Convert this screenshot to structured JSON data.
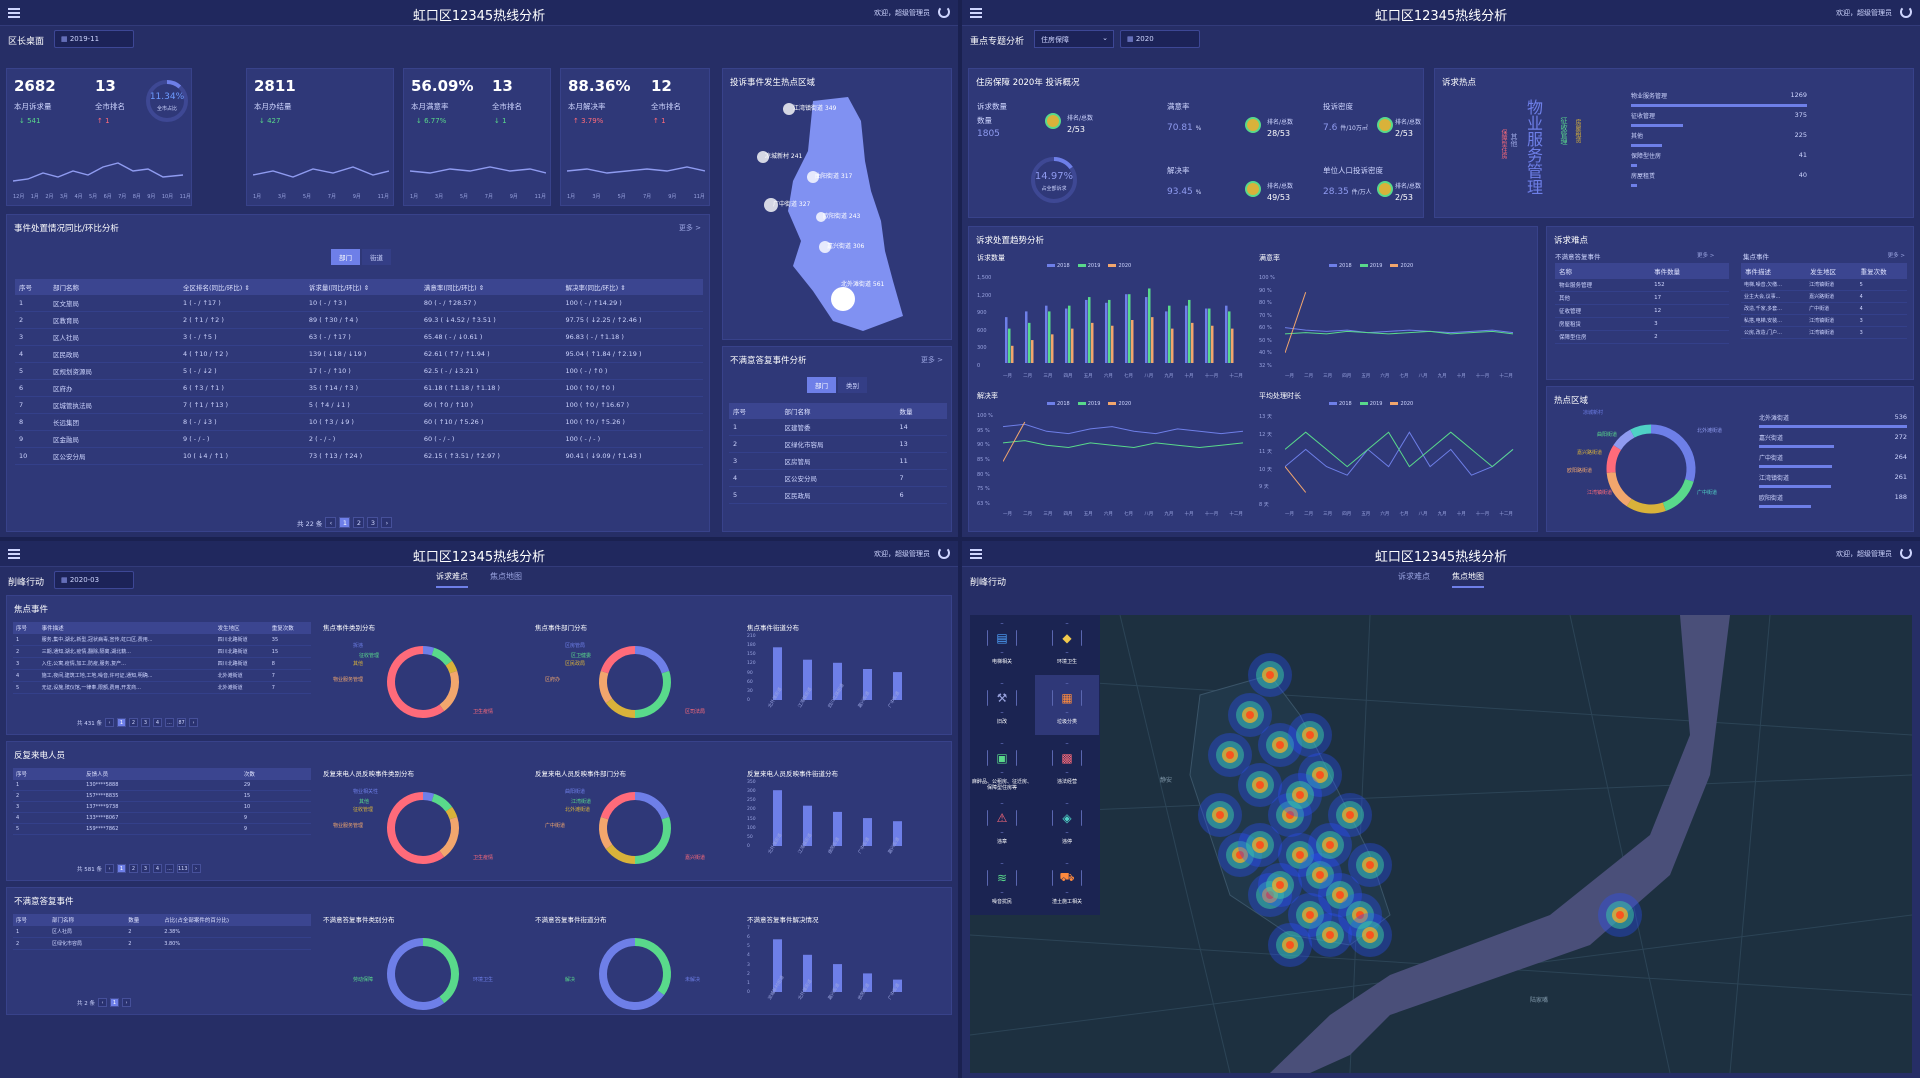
{
  "header": {
    "title": "虹口区12345热线分析",
    "user": "欢迎，超级管理员"
  },
  "q1": {
    "section": "区长桌面",
    "date": "2019-11",
    "kpis": [
      {
        "v1": "2682",
        "v2": "13",
        "l1": "本月诉求量",
        "l2": "全市排名",
        "d1": "↓ 541",
        "d2": "↑ 1",
        "ring": "11.34%",
        "ring_lbl": "全市占比",
        "ticks": [
          "12月",
          "1月",
          "2月",
          "3月",
          "4月",
          "5月",
          "6月",
          "7月",
          "8月",
          "9月",
          "10月",
          "11月"
        ]
      },
      {
        "v1": "2811",
        "v2": "",
        "l1": "本月办结量",
        "l2": "",
        "d1": "↓ 427",
        "d2": "",
        "ticks": [
          "1月",
          "3月",
          "5月",
          "7月",
          "9月",
          "11月"
        ]
      },
      {
        "v1": "56.09%",
        "v2": "13",
        "l1": "本月满意率",
        "l2": "全市排名",
        "d1": "↓ 6.77%",
        "d2": "↓ 1",
        "ticks": [
          "1月",
          "3月",
          "5月",
          "7月",
          "9月",
          "11月"
        ]
      },
      {
        "v1": "88.36%",
        "v2": "12",
        "l1": "本月解决率",
        "l2": "全市排名",
        "d1": "↑ 3.79%",
        "d2": "↑ 1",
        "ticks": [
          "1月",
          "3月",
          "5月",
          "7月",
          "9月",
          "11月"
        ]
      }
    ],
    "map_title": "投诉事件发生热点区域",
    "map_labels": [
      "江湾镇街道 349",
      "凉城新村 241",
      "曲阳街道 317",
      "广中街道 327",
      "欧阳街道 243",
      "嘉兴街道 306",
      "北外滩街道 561"
    ],
    "table_title": "事件处置情况同比/环比分析",
    "more": "更多 >",
    "tabs": [
      "部门",
      "街道"
    ],
    "cols": [
      "序号",
      "部门名称",
      "全区排名(同比/环比) ⇕",
      "诉求量(同比/环比) ⇕",
      "满意率(同比/环比) ⇕",
      "解决率(同比/环比) ⇕"
    ],
    "rows": [
      [
        "1",
        "区文旅局",
        "1 ( - / ↑17 )",
        "10 ( - / ↑3 )",
        "80 ( - / ↑28.57 )",
        "100 ( - / ↑14.29 )"
      ],
      [
        "2",
        "区教育局",
        "2 ( ↑1 / ↑2 )",
        "89 ( ↑30 / ↑4 )",
        "69.3 ( ↓4.52 / ↑3.51 )",
        "97.75 ( ↓2.25 / ↑2.46 )"
      ],
      [
        "3",
        "区人社局",
        "3 ( - / ↑5 )",
        "63 ( - / ↑17 )",
        "65.48 ( - / ↓0.61 )",
        "96.83 ( - / ↑1.18 )"
      ],
      [
        "4",
        "区民政局",
        "4 ( ↑10 / ↑2 )",
        "139 ( ↓18 / ↓19 )",
        "62.61 ( ↑7 / ↑1.94 )",
        "95.04 ( ↑1.84 / ↑2.19 )"
      ],
      [
        "5",
        "区规划资源局",
        "5 ( - / ↓2 )",
        "17 ( - / ↑10 )",
        "62.5 ( - / ↓3.21 )",
        "100 ( - / ↑0 )"
      ],
      [
        "6",
        "区府办",
        "6 ( ↑3 / ↑1 )",
        "35 ( ↑14 / ↑3 )",
        "61.18 ( ↑1.18 / ↑1.18 )",
        "100 ( ↑0 / ↑0 )"
      ],
      [
        "7",
        "区城管执法局",
        "7 ( ↑1 / ↑13 )",
        "5 ( ↑4 / ↓1 )",
        "60 ( ↑0 / ↑10 )",
        "100 ( ↑0 / ↑16.67 )"
      ],
      [
        "8",
        "长远集团",
        "8 ( - / ↓3 )",
        "10 ( ↑3 / ↓9 )",
        "60 ( ↑10 / ↑5.26 )",
        "100 ( ↑0 / ↑5.26 )"
      ],
      [
        "9",
        "区金融局",
        "9 ( - / - )",
        "2 ( - / - )",
        "60 ( - / - )",
        "100 ( - / - )"
      ],
      [
        "10",
        "区公安分局",
        "10 ( ↓4 / ↑1 )",
        "73 ( ↑13 / ↑24 )",
        "62.15 ( ↑3.51 / ↑2.97 )",
        "90.41 ( ↓9.09 / ↑1.43 )"
      ]
    ],
    "pager": [
      "共 22 条",
      "‹",
      "1",
      "2",
      "3",
      "›"
    ],
    "dis_title": "不满意答复事件分析",
    "dis_more": "更多 >",
    "dis_tabs": [
      "部门",
      "类别"
    ],
    "dis_cols": [
      "序号",
      "部门名称",
      "数量"
    ],
    "dis_rows": [
      [
        "1",
        "区建管委",
        "14"
      ],
      [
        "2",
        "区绿化市容局",
        "13"
      ],
      [
        "3",
        "区房管局",
        "11"
      ],
      [
        "4",
        "区公安分局",
        "7"
      ],
      [
        "5",
        "区民政局",
        "6"
      ]
    ]
  },
  "q2": {
    "section": "重点专题分析",
    "select": "住房保障",
    "date": "2020",
    "ov_title": "住房保障 2020年 投诉概况",
    "ov": {
      "c_lbl": "诉求数量",
      "c_sub": "数量",
      "c_val": "1805",
      "c_rank_lbl": "排名/总数",
      "c_rank": "2/53",
      "ring": "14.97%",
      "ring_lbl": "占全部诉求",
      "s_lbl": "满意率",
      "s_val": "70.81",
      "s_unit": "%",
      "s_rank": "28/53",
      "r_lbl": "解决率",
      "r_val": "93.45",
      "r_unit": "%",
      "r_rank": "49/53",
      "d_lbl": "投诉密度",
      "d_val": "7.6",
      "d_unit": "件/10万㎡",
      "d_rank": "2/53",
      "p_lbl": "单位人口投诉密度",
      "p_val": "28.35",
      "p_unit": "件/万人",
      "p_rank": "2/53",
      "rank_lbl": "排名/总数"
    },
    "hot_title": "诉求热点",
    "cloud": [
      "物业服务管理",
      "征收管理",
      "其他",
      "保障型住房",
      "房屋租赁"
    ],
    "hot_rows": [
      [
        "物业服务管理",
        "1269"
      ],
      [
        "征收管理",
        "375"
      ],
      [
        "其他",
        "225"
      ],
      [
        "保障型住房",
        "41"
      ],
      [
        "房屋租赁",
        "40"
      ]
    ],
    "trend_title": "诉求处置趋势分析",
    "months": [
      "一月",
      "二月",
      "三月",
      "四月",
      "五月",
      "六月",
      "七月",
      "八月",
      "九月",
      "十月",
      "十一月",
      "十二月"
    ],
    "legend": [
      "2018",
      "2019",
      "2020"
    ],
    "c1": {
      "title": "诉求数量",
      "yt": [
        "1,500",
        "1,200",
        "900",
        "600",
        "300",
        "0"
      ]
    },
    "c2": {
      "title": "满意率",
      "yt": [
        "100 %",
        "90 %",
        "80 %",
        "70 %",
        "60 %",
        "50 %",
        "40 %",
        "32 %"
      ]
    },
    "c3": {
      "title": "解决率",
      "yt": [
        "100 %",
        "95 %",
        "90 %",
        "85 %",
        "80 %",
        "75 %",
        "63 %"
      ]
    },
    "c4": {
      "title": "平均处理时长",
      "yt": [
        "13 天",
        "12 天",
        "11 天",
        "10 天",
        "9 天",
        "8 天"
      ]
    },
    "diff_title": "诉求难点",
    "d1_title": "不满意答复事件",
    "d1_cols": [
      "名称",
      "事件数量"
    ],
    "d1_rows": [
      [
        "物业服务管理",
        "152"
      ],
      [
        "其他",
        "17"
      ],
      [
        "征收管理",
        "12"
      ],
      [
        "房屋租赁",
        "3"
      ],
      [
        "保障型住房",
        "2"
      ]
    ],
    "d2_title": "集点事件",
    "d2_cols": [
      "事件描述",
      "发生地区",
      "重复次数"
    ],
    "d2_rows": [
      [
        "电梯,噪音,欠缴...",
        "江湾镇街道",
        "5"
      ],
      [
        "业主大会,议事...",
        "嘉兴路街道",
        "4"
      ],
      [
        "改造,千家,多套...",
        "广中街道",
        "4"
      ],
      [
        "私搭,电梯,安装...",
        "江湾镇街道",
        "3"
      ],
      [
        "公房,改造,门户...",
        "江湾镇街道",
        "3"
      ]
    ],
    "more": "更多 >",
    "zone_title": "热点区域",
    "zone_labels": [
      "凉城新村",
      "曲阳街道",
      "嘉兴路街道",
      "欧阳路街道",
      "江湾镇街道",
      "北外滩街道",
      "广中街道"
    ],
    "zone_rows": [
      [
        "北外滩街道",
        "536"
      ],
      [
        "嘉兴街道",
        "272"
      ],
      [
        "广中街道",
        "264"
      ],
      [
        "江湾镇街道",
        "261"
      ],
      [
        "欧阳街道",
        "188"
      ]
    ]
  },
  "q3": {
    "section": "削峰行动",
    "date": "2020-03",
    "tabs": [
      "诉求难点",
      "焦点地图"
    ],
    "s1": {
      "title": "焦点事件",
      "cols": [
        "序号",
        "事件描述",
        "发生地区",
        "重复次数"
      ],
      "rows": [
        [
          "1",
          "服务,集中,湖北,新型,冠状病毒,宣传,虹口区,费用...",
          "四川北路街道",
          "35"
        ],
        [
          "2",
          "三期,通知,湖北,疫情,翻除,隔离,湖北籍...",
          "四川北路街道",
          "15"
        ],
        [
          "3",
          "入住,公寓,疫情,加工,防疫,服务,复产...",
          "四川北路街道",
          "8"
        ],
        [
          "4",
          "施工,夜间,建筑工地,工地,噪音,许可证,通知,明确...",
          "北外滩街道",
          "7"
        ],
        [
          "5",
          "无证,设施,殡仪馆,一律奉,限额,费用,开发商...",
          "北外滩街道",
          "7"
        ]
      ],
      "pager": [
        "共 431 条",
        "‹",
        "1",
        "2",
        "3",
        "4",
        "...",
        "87",
        "›"
      ],
      "ch": [
        "焦点事件类别分布",
        "焦点事件部门分布",
        "焦点事件街道分布"
      ],
      "pie1": [
        "拆违",
        "征收管理",
        "其他",
        "物业服务管理",
        "卫生疫情"
      ],
      "pie2": [
        "区房管局",
        "区卫健委",
        "区民政局",
        "区府办",
        "区司法局"
      ],
      "bars": [
        "北外滩街道",
        "江湾镇街道",
        "四川北路街道",
        "嘉兴街道",
        "广中街道"
      ],
      "yt": [
        "210",
        "180",
        "150",
        "120",
        "90",
        "60",
        "30",
        "0"
      ]
    },
    "s2": {
      "title": "反复来电人员",
      "cols": [
        "序号",
        "反馈人员",
        "次数"
      ],
      "rows": [
        [
          "1",
          "130****5888",
          "29"
        ],
        [
          "2",
          "157****8835",
          "15"
        ],
        [
          "3",
          "137****9738",
          "10"
        ],
        [
          "4",
          "133****8067",
          "9"
        ],
        [
          "5",
          "159****7862",
          "9"
        ]
      ],
      "pager": [
        "共 581 条",
        "‹",
        "1",
        "2",
        "3",
        "4",
        "...",
        "113",
        "›"
      ],
      "ch": [
        "反复来电人员反映事件类别分布",
        "反复来电人员反映事件部门分布",
        "反复来电人员反映事件街道分布"
      ],
      "pie1": [
        "物业相关性",
        "其他",
        "征收管理",
        "物业服务管理",
        "卫生疫情"
      ],
      "pie2": [
        "曲阳街道",
        "江湾街道",
        "北外滩街道",
        "广中街道",
        "嘉兴街道"
      ],
      "bars": [
        "北外滩街道",
        "江湾镇街道",
        "曲阳街道",
        "广中街道",
        "嘉兴街道"
      ],
      "yt": [
        "350",
        "300",
        "250",
        "200",
        "150",
        "100",
        "50",
        "0"
      ]
    },
    "s3": {
      "title": "不满意答复事件",
      "cols": [
        "序号",
        "部门名称",
        "数量",
        "占比(占全部案件的百分比)"
      ],
      "rows": [
        [
          "1",
          "区人社局",
          "2",
          "2.38%"
        ],
        [
          "2",
          "区绿化市容局",
          "2",
          "3.80%"
        ]
      ],
      "pager": [
        "共 2 条",
        "‹",
        "1",
        "›"
      ],
      "ch": [
        "不满意答复事件类别分布",
        "不满意答复事件街道分布",
        "不满意答复事件解决情况"
      ],
      "pie1": [
        "劳动保障",
        "环境卫生"
      ],
      "pie2": [
        "解决",
        "未解决"
      ],
      "bars": [
        "凉城新村街道",
        "北外滩街道",
        "嘉兴街道",
        "欧阳街道",
        "广中街道"
      ],
      "yt": [
        "7",
        "6",
        "5",
        "4",
        "3",
        "2",
        "1",
        "0"
      ]
    }
  },
  "q4": {
    "section": "削峰行动",
    "tabs": [
      "诉求难点",
      "焦点地图"
    ],
    "menu": [
      "电梯相关",
      "环境卫生",
      "旧改",
      "垃圾分类",
      "麻醉品、公租房、征迁房、保障型住房等",
      "违法经营",
      "违章",
      "违停",
      "噪音扰民",
      "渣土施工相关"
    ],
    "map_labels": [
      "静安",
      "陆家嘴"
    ]
  }
}
